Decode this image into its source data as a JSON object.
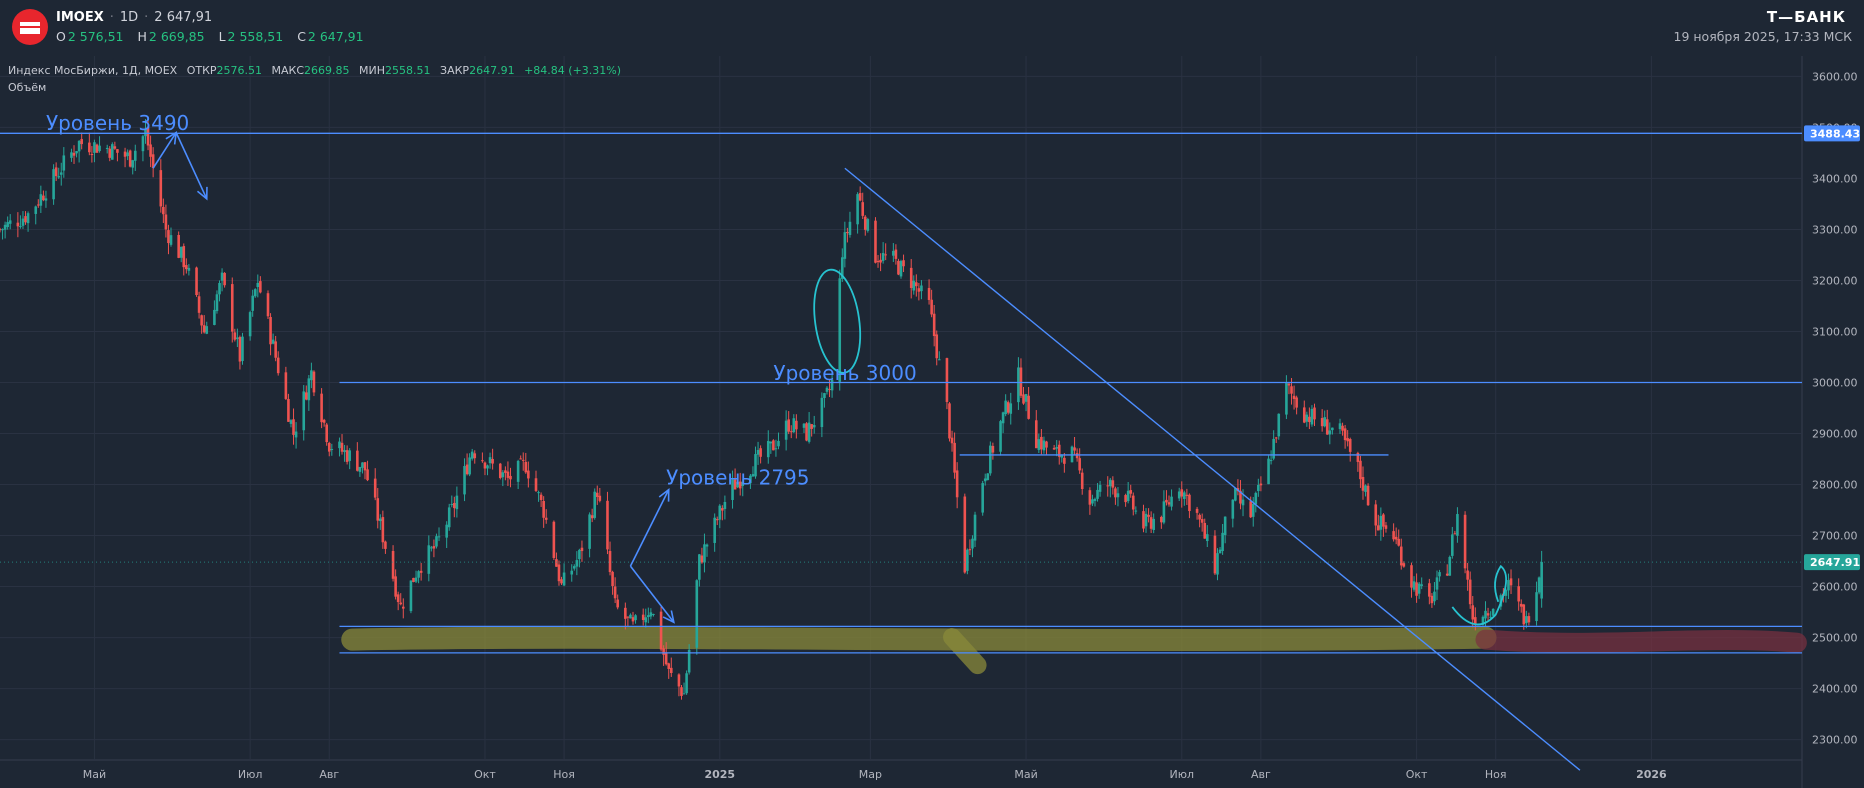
{
  "header": {
    "symbol": "IMOEX",
    "interval": "1D",
    "last_price": "2 647,91",
    "ohlc": [
      {
        "key": "O",
        "value": "2 576,51"
      },
      {
        "key": "H",
        "value": "2 669,85"
      },
      {
        "key": "L",
        "value": "2 558,51"
      },
      {
        "key": "C",
        "value": "2 647,91"
      }
    ],
    "brand": "Т—БАНК",
    "datetime": "19 ноября 2025, 17:33 МСК"
  },
  "legend": {
    "title": "Индекс МосБиржи, 1Д, MOEX",
    "open_label": "ОТКР",
    "open_value": "2576.51",
    "high_label": "МАКС",
    "high_value": "2669.85",
    "low_label": "МИН",
    "low_value": "2558.51",
    "close_label": "ЗАКР",
    "close_value": "2647.91",
    "change": "+84.84 (+3.31%)",
    "volume_label": "Объём"
  },
  "colors": {
    "background": "#1e2734",
    "up": "#26a69a",
    "down": "#ef5350",
    "drawing": "#4c8dff",
    "circle": "#27c3d0",
    "highlight_yellow": "#8a8a3a",
    "highlight_red": "#7a3040",
    "price_tag": "#26a69a",
    "level_tag": "#4c8dff"
  },
  "chart_data": {
    "type": "candlestick",
    "y_axis": {
      "ticks": [
        2300,
        2400,
        2500,
        2600,
        2700,
        2800,
        2900,
        3000,
        3100,
        3200,
        3300,
        3400,
        3500,
        3600
      ],
      "tick_labels": [
        "2300.00",
        "2400.00",
        "2500.00",
        "2600.00",
        "2700.00",
        "2800.00",
        "2900.00",
        "3000.00",
        "3100.00",
        "3200.00",
        "3300.00",
        "3400.00",
        "3500.00",
        "3600.00"
      ],
      "range": [
        2260,
        3640
      ]
    },
    "x_axis": {
      "range": [
        "2024-03-25",
        "2026-03-01"
      ],
      "ticks": [
        {
          "date": "2024-05-01",
          "label": "Май"
        },
        {
          "date": "2024-07-01",
          "label": "Июл"
        },
        {
          "date": "2024-08-01",
          "label": "Авг"
        },
        {
          "date": "2024-10-01",
          "label": "Окт"
        },
        {
          "date": "2024-11-01",
          "label": "Ноя"
        },
        {
          "date": "2025-01-01",
          "label": "2025"
        },
        {
          "date": "2025-03-01",
          "label": "Мар"
        },
        {
          "date": "2025-05-01",
          "label": "Май"
        },
        {
          "date": "2025-07-01",
          "label": "Июл"
        },
        {
          "date": "2025-08-01",
          "label": "Авг"
        },
        {
          "date": "2025-10-01",
          "label": "Окт"
        },
        {
          "date": "2025-11-01",
          "label": "Ноя"
        },
        {
          "date": "2026-01-01",
          "label": "2026"
        }
      ]
    },
    "price_path": [
      [
        "2024-03-25",
        3300
      ],
      [
        "2024-04-05",
        3330
      ],
      [
        "2024-04-15",
        3400
      ],
      [
        "2024-04-25",
        3470
      ],
      [
        "2024-05-06",
        3460
      ],
      [
        "2024-05-15",
        3440
      ],
      [
        "2024-05-21",
        3490
      ],
      [
        "2024-05-29",
        3300
      ],
      [
        "2024-06-06",
        3230
      ],
      [
        "2024-06-13",
        3100
      ],
      [
        "2024-06-20",
        3200
      ],
      [
        "2024-06-27",
        3050
      ],
      [
        "2024-07-04",
        3200
      ],
      [
        "2024-07-11",
        3050
      ],
      [
        "2024-07-18",
        2900
      ],
      [
        "2024-07-25",
        3020
      ],
      [
        "2024-08-01",
        2880
      ],
      [
        "2024-08-08",
        2860
      ],
      [
        "2024-08-15",
        2830
      ],
      [
        "2024-08-22",
        2700
      ],
      [
        "2024-08-29",
        2560
      ],
      [
        "2024-09-05",
        2640
      ],
      [
        "2024-09-12",
        2680
      ],
      [
        "2024-09-19",
        2760
      ],
      [
        "2024-09-26",
        2870
      ],
      [
        "2024-10-03",
        2840
      ],
      [
        "2024-10-10",
        2810
      ],
      [
        "2024-10-17",
        2840
      ],
      [
        "2024-10-24",
        2750
      ],
      [
        "2024-10-31",
        2600
      ],
      [
        "2024-11-07",
        2660
      ],
      [
        "2024-11-14",
        2790
      ],
      [
        "2024-11-21",
        2560
      ],
      [
        "2024-11-28",
        2520
      ],
      [
        "2024-12-05",
        2560
      ],
      [
        "2024-12-12",
        2430
      ],
      [
        "2024-12-18",
        2390
      ],
      [
        "2024-12-24",
        2650
      ],
      [
        "2025-01-05",
        2790
      ],
      [
        "2025-01-14",
        2840
      ],
      [
        "2025-01-21",
        2870
      ],
      [
        "2025-01-28",
        2920
      ],
      [
        "2025-02-04",
        2900
      ],
      [
        "2025-02-11",
        2960
      ],
      [
        "2025-02-14",
        3000
      ],
      [
        "2025-02-18",
        3260
      ],
      [
        "2025-02-24",
        3370
      ],
      [
        "2025-03-03",
        3250
      ],
      [
        "2025-03-10",
        3240
      ],
      [
        "2025-03-17",
        3200
      ],
      [
        "2025-03-24",
        3150
      ],
      [
        "2025-03-31",
        2950
      ],
      [
        "2025-04-07",
        2640
      ],
      [
        "2025-04-14",
        2810
      ],
      [
        "2025-04-21",
        2920
      ],
      [
        "2025-04-28",
        3010
      ],
      [
        "2025-05-05",
        2890
      ],
      [
        "2025-05-12",
        2860
      ],
      [
        "2025-05-19",
        2860
      ],
      [
        "2025-05-26",
        2770
      ],
      [
        "2025-06-02",
        2800
      ],
      [
        "2025-06-09",
        2780
      ],
      [
        "2025-06-16",
        2720
      ],
      [
        "2025-06-23",
        2740
      ],
      [
        "2025-06-30",
        2800
      ],
      [
        "2025-07-07",
        2740
      ],
      [
        "2025-07-14",
        2640
      ],
      [
        "2025-07-21",
        2780
      ],
      [
        "2025-07-28",
        2740
      ],
      [
        "2025-08-04",
        2840
      ],
      [
        "2025-08-11",
        2990
      ],
      [
        "2025-08-18",
        2940
      ],
      [
        "2025-08-25",
        2920
      ],
      [
        "2025-09-01",
        2900
      ],
      [
        "2025-09-08",
        2830
      ],
      [
        "2025-09-15",
        2730
      ],
      [
        "2025-09-22",
        2700
      ],
      [
        "2025-09-29",
        2610
      ],
      [
        "2025-10-06",
        2570
      ],
      [
        "2025-10-13",
        2640
      ],
      [
        "2025-10-17",
        2740
      ],
      [
        "2025-10-23",
        2540
      ],
      [
        "2025-10-30",
        2560
      ],
      [
        "2025-11-06",
        2600
      ],
      [
        "2025-11-13",
        2530
      ],
      [
        "2025-11-19",
        2647.91
      ]
    ],
    "horizontal_levels": [
      {
        "price": 3488.43,
        "from": "2024-03-25",
        "to": "2026-03-01"
      },
      {
        "price": 3000,
        "from": "2024-08-05",
        "to": "2026-03-01"
      },
      {
        "price": 2858,
        "from": "2025-04-05",
        "to": "2025-09-20"
      },
      {
        "price": 2522,
        "from": "2024-08-05",
        "to": "2026-03-01"
      },
      {
        "price": 2470,
        "from": "2024-08-05",
        "to": "2026-03-01"
      }
    ],
    "trendline": {
      "from": [
        "2025-02-19",
        3420
      ],
      "to": [
        "2025-12-04",
        2240
      ]
    },
    "annotations": [
      {
        "text": "Уровень 3490",
        "date": "2024-04-12",
        "price": 3495
      },
      {
        "text": "Уровень 3000",
        "date": "2025-01-22",
        "price": 3005
      },
      {
        "text": "Уровень 2795",
        "date": "2024-12-11",
        "price": 2800
      }
    ],
    "price_tags": [
      {
        "label": "3488.43",
        "price": 3488.43,
        "kind": "level"
      },
      {
        "label": "2647.91",
        "price": 2647.91,
        "kind": "last"
      }
    ],
    "grid": true
  }
}
